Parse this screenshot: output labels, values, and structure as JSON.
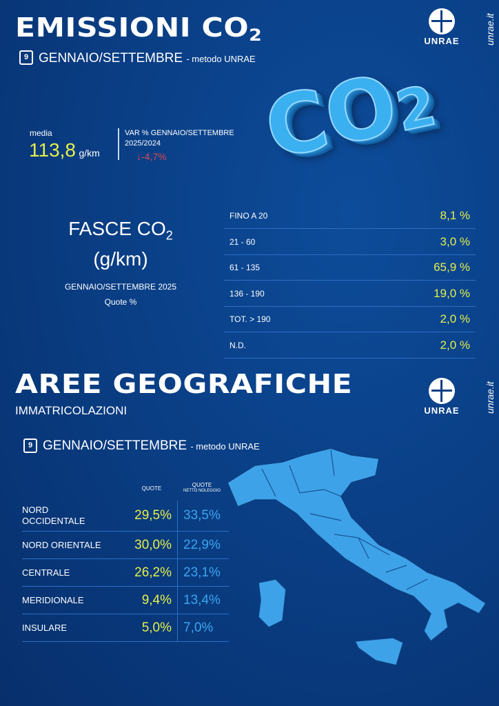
{
  "section1": {
    "title": "EMISSIONI CO",
    "title_sub": "2",
    "calendar_day": "9",
    "period": "GENNAIO/SETTEMBRE",
    "method": "- metodo UNRAE",
    "media_label": "media",
    "media_value": "113,8",
    "media_unit": "g/km",
    "var_label": "VAR % GENNAIO/SETTEMBRE",
    "var_years": "2025/2024",
    "var_value": "-4,7%",
    "var_color": "#e0484d",
    "graphic_text": "CO",
    "graphic_sub": "2"
  },
  "fasce": {
    "title": "FASCE CO",
    "title_sub": "2",
    "unit": "(g/km)",
    "period": "GENNAIO/SETTEMBRE 2025",
    "note": "Quote %",
    "rows": [
      {
        "label": "FINO A 20",
        "value": "8,1 %"
      },
      {
        "label": "21 - 60",
        "value": "3,0 %"
      },
      {
        "label": "61 - 135",
        "value": "65,9 %"
      },
      {
        "label": "136 - 190",
        "value": "19,0 %"
      },
      {
        "label": "TOT. > 190",
        "value": "2,0 %"
      },
      {
        "label": "N.D.",
        "value": "2,0 %"
      }
    ]
  },
  "section2": {
    "title": "AREE GEOGRAFICHE",
    "subtitle": "IMMATRICOLAZIONI",
    "calendar_day": "9",
    "period": "GENNAIO/SETTEMBRE",
    "method": "- metodo UNRAE",
    "col_quote": "QUOTE",
    "col_netto": "QUOTE",
    "col_netto_sub": "NETTO NOLEGGIO",
    "rows": [
      {
        "label": "NORD OCCIDENTALE",
        "quote": "29,5%",
        "netto": "33,5%"
      },
      {
        "label": "NORD ORIENTALE",
        "quote": "30,0%",
        "netto": "22,9%"
      },
      {
        "label": "CENTRALE",
        "quote": "26,2%",
        "netto": "23,1%"
      },
      {
        "label": "MERIDIONALE",
        "quote": "9,4%",
        "netto": "13,4%"
      },
      {
        "label": "INSULARE",
        "quote": "5,0%",
        "netto": "7,0%"
      }
    ]
  },
  "brand": {
    "logo": "UNRAE",
    "site": "unrae.it"
  },
  "colors": {
    "background": "#0a3f86",
    "yellow": "#e6f04a",
    "light_blue": "#3aa6f0"
  }
}
